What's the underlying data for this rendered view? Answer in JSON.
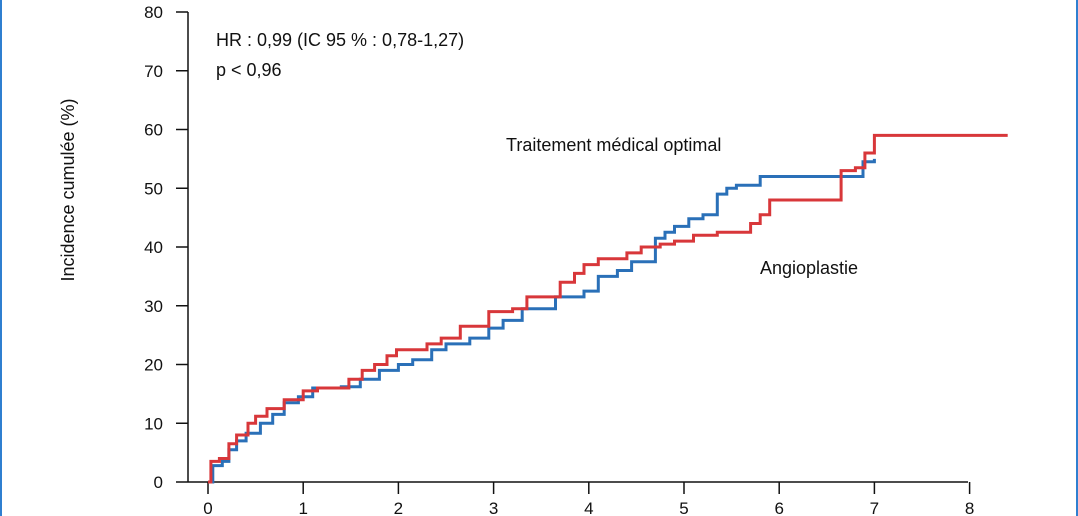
{
  "chart_data": {
    "type": "line",
    "ylabel": "Incidence cumulée (%)",
    "xlabel": "",
    "xlim": [
      0,
      8
    ],
    "ylim": [
      0,
      80
    ],
    "x_ticks": [
      "0",
      "1",
      "2",
      "3",
      "4",
      "5",
      "6",
      "7",
      "8"
    ],
    "y_ticks": [
      "0",
      "10",
      "20",
      "30",
      "40",
      "50",
      "60",
      "70",
      "80"
    ],
    "grid": false,
    "annotations": {
      "hr": "HR : 0,99 (IC 95 % : 0,78-1,27)",
      "p": "p < 0,96"
    },
    "series": [
      {
        "name": "Traitement médical optimal",
        "color": "#2a70b8",
        "points": [
          [
            0.0,
            0.0
          ],
          [
            0.05,
            2.8
          ],
          [
            0.15,
            3.5
          ],
          [
            0.22,
            5.5
          ],
          [
            0.3,
            7.0
          ],
          [
            0.4,
            8.3
          ],
          [
            0.55,
            10.0
          ],
          [
            0.68,
            11.5
          ],
          [
            0.8,
            13.5
          ],
          [
            0.95,
            14.5
          ],
          [
            1.1,
            16.0
          ],
          [
            1.4,
            16.2
          ],
          [
            1.6,
            17.5
          ],
          [
            1.8,
            19.0
          ],
          [
            2.0,
            20.0
          ],
          [
            2.15,
            20.8
          ],
          [
            2.35,
            22.5
          ],
          [
            2.5,
            23.5
          ],
          [
            2.75,
            24.5
          ],
          [
            2.95,
            26.2
          ],
          [
            3.1,
            27.5
          ],
          [
            3.3,
            29.5
          ],
          [
            3.65,
            31.5
          ],
          [
            3.95,
            32.5
          ],
          [
            4.1,
            35.0
          ],
          [
            4.3,
            36.0
          ],
          [
            4.45,
            37.5
          ],
          [
            4.7,
            41.5
          ],
          [
            4.8,
            42.5
          ],
          [
            4.9,
            43.5
          ],
          [
            5.05,
            44.8
          ],
          [
            5.2,
            45.5
          ],
          [
            5.35,
            49.0
          ],
          [
            5.45,
            50.0
          ],
          [
            5.55,
            50.5
          ],
          [
            5.8,
            52.0
          ],
          [
            6.8,
            52.0
          ],
          [
            6.88,
            54.5
          ],
          [
            7.0,
            55.0
          ]
        ]
      },
      {
        "name": "Angioplastie",
        "color": "#d8373a",
        "points": [
          [
            0.0,
            0.0
          ],
          [
            0.03,
            3.5
          ],
          [
            0.12,
            4.0
          ],
          [
            0.22,
            6.5
          ],
          [
            0.3,
            8.0
          ],
          [
            0.42,
            10.0
          ],
          [
            0.5,
            11.2
          ],
          [
            0.62,
            12.5
          ],
          [
            0.8,
            14.0
          ],
          [
            1.0,
            15.5
          ],
          [
            1.15,
            16.0
          ],
          [
            1.48,
            17.5
          ],
          [
            1.62,
            19.0
          ],
          [
            1.75,
            20.0
          ],
          [
            1.88,
            21.5
          ],
          [
            1.98,
            22.5
          ],
          [
            2.3,
            23.5
          ],
          [
            2.45,
            24.5
          ],
          [
            2.65,
            26.5
          ],
          [
            2.95,
            29.0
          ],
          [
            3.2,
            29.5
          ],
          [
            3.35,
            31.5
          ],
          [
            3.7,
            34.0
          ],
          [
            3.85,
            35.5
          ],
          [
            3.95,
            37.0
          ],
          [
            4.1,
            38.0
          ],
          [
            4.4,
            39.0
          ],
          [
            4.55,
            40.0
          ],
          [
            4.75,
            40.5
          ],
          [
            4.9,
            41.0
          ],
          [
            5.1,
            42.0
          ],
          [
            5.35,
            42.5
          ],
          [
            5.7,
            44.0
          ],
          [
            5.8,
            45.5
          ],
          [
            5.9,
            48.0
          ],
          [
            6.65,
            53.0
          ],
          [
            6.8,
            53.5
          ],
          [
            6.9,
            56.0
          ],
          [
            7.0,
            59.0
          ],
          [
            8.4,
            59.0
          ]
        ]
      }
    ]
  }
}
